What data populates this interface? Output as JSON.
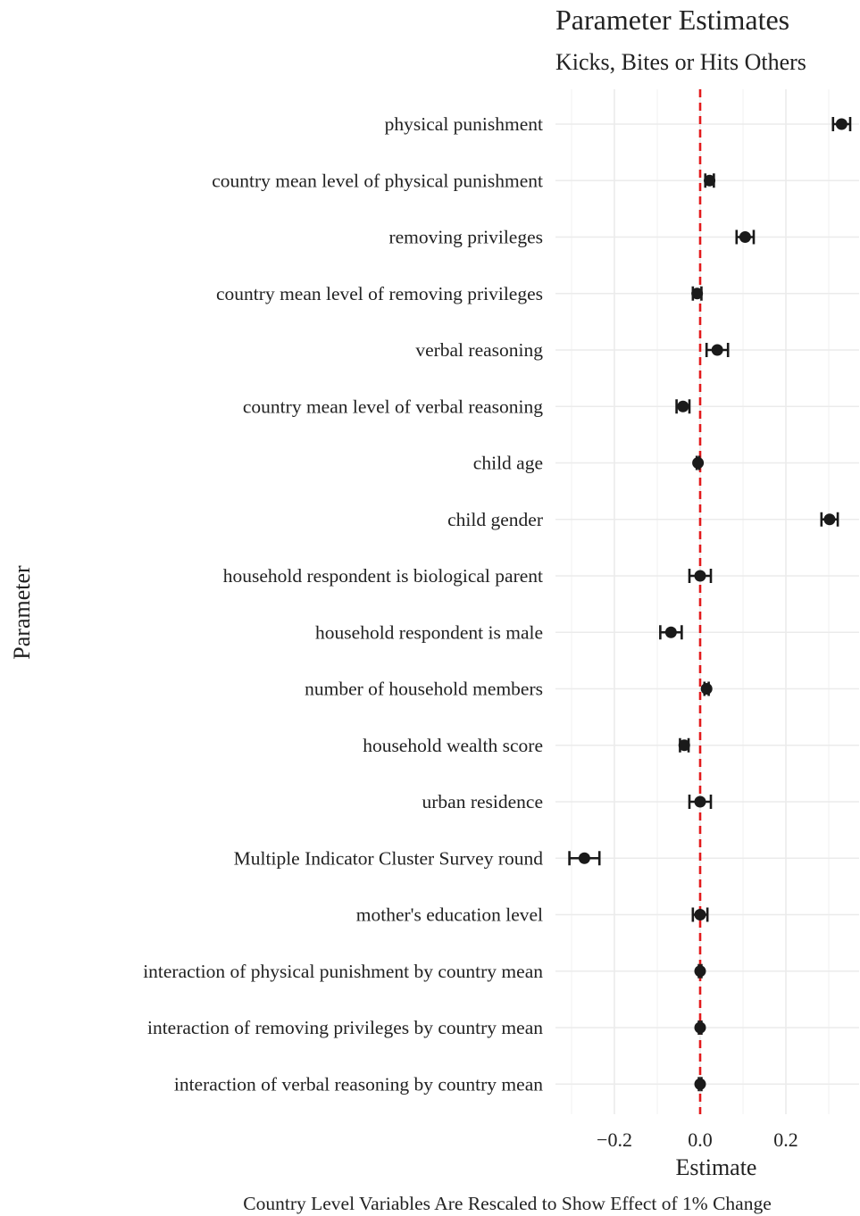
{
  "chart_data": {
    "type": "scatter",
    "title": "Parameter Estimates",
    "subtitle": "Kicks, Bites or Hits Others",
    "xlabel": "Estimate",
    "ylabel": "Parameter",
    "caption": "Country Level Variables Are Rescaled to Show Effect of 1% Change",
    "xlim": [
      -0.3,
      0.35
    ],
    "x_ticks": [
      -0.2,
      0.0,
      0.2
    ],
    "x_tick_labels": [
      "−0.2",
      "0.0",
      "0.2"
    ],
    "reference_line": {
      "x": 0,
      "color": "#e31a1c",
      "style": "dashed"
    },
    "grid": true,
    "point_color": "#1a1a1a",
    "categories": [
      "physical punishment",
      "country mean level of physical punishment",
      "removing privileges",
      "country mean level of removing privileges",
      "verbal reasoning",
      "country mean level of verbal reasoning",
      "child age",
      "child gender",
      "household respondent is biological parent",
      "household respondent is male",
      "number of household members",
      "household wealth score",
      "urban residence",
      "Multiple Indicator Cluster Survey round",
      "mother's education level",
      "interaction of physical punishment by country mean",
      "interaction of removing privileges by country mean",
      "interaction of verbal reasoning by country mean"
    ],
    "estimates": [
      0.33,
      0.022,
      0.105,
      -0.007,
      0.04,
      -0.04,
      -0.005,
      0.302,
      0.0,
      -0.068,
      0.015,
      -0.037,
      0.0,
      -0.27,
      0.0,
      0.0,
      0.0,
      0.0
    ],
    "ci_low": [
      0.31,
      0.012,
      0.085,
      -0.017,
      0.015,
      -0.055,
      -0.008,
      0.283,
      -0.025,
      -0.093,
      0.01,
      -0.047,
      -0.025,
      -0.305,
      -0.017,
      -0.003,
      -0.003,
      -0.003
    ],
    "ci_high": [
      0.35,
      0.032,
      0.125,
      0.003,
      0.065,
      -0.025,
      -0.002,
      0.321,
      0.025,
      -0.043,
      0.02,
      -0.027,
      0.025,
      -0.235,
      0.017,
      0.003,
      0.003,
      0.003
    ]
  }
}
